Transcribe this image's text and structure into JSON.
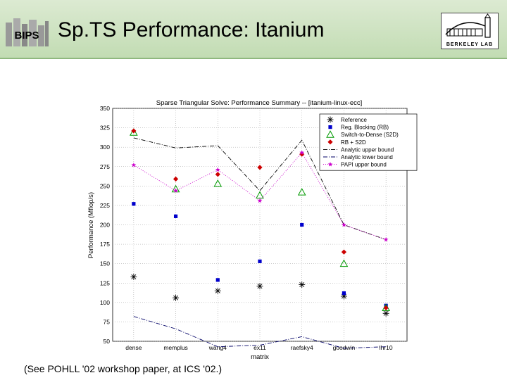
{
  "slide": {
    "title": "Sp.TS Performance: Itanium",
    "left_logo": "BIPS",
    "right_logo": "BERKELEY LAB",
    "footnote": "(See POHLL '02 workshop paper, at ICS '02.)"
  },
  "chart_data": {
    "type": "line",
    "title": "Sparse Triangular Solve: Performance Summary -- [itanium-linux-ecc]",
    "xlabel": "matrix",
    "ylabel": "Performance (Mflop/s)",
    "ylim": [
      50,
      350
    ],
    "yticks": [
      50,
      75,
      100,
      125,
      150,
      175,
      200,
      225,
      250,
      275,
      300,
      325,
      350
    ],
    "categories": [
      "dense",
      "memplus",
      "wang4",
      "ex11",
      "raefsky4",
      "goodwin",
      "lhr10"
    ],
    "grid": true,
    "legend_position": "top-right",
    "series": [
      {
        "name": "Reference",
        "marker": "asterisk",
        "color": "#000000",
        "line": "none",
        "values": [
          133,
          106,
          115,
          121,
          123,
          108,
          86
        ]
      },
      {
        "name": "Reg. Blocking (RB)",
        "marker": "square",
        "color": "#0000cc",
        "line": "none",
        "values": [
          227,
          211,
          129,
          153,
          200,
          112,
          96
        ]
      },
      {
        "name": "Switch-to-Dense (S2D)",
        "marker": "triangle",
        "color": "#009900",
        "line": "none",
        "values": [
          319,
          246,
          253,
          238,
          242,
          150,
          93
        ]
      },
      {
        "name": "RB + S2D",
        "marker": "diamond",
        "color": "#cc0000",
        "line": "none",
        "values": [
          321,
          259,
          265,
          274,
          291,
          165,
          93
        ]
      },
      {
        "name": "Analytic upper bound",
        "marker": "none",
        "color": "#000000",
        "line": "dashdot",
        "values": [
          312,
          299,
          302,
          244,
          309,
          200,
          181
        ]
      },
      {
        "name": "Analytic lower bound",
        "marker": "none",
        "color": "#000066",
        "line": "dashdot",
        "values": [
          82,
          66,
          43,
          45,
          56,
          41,
          43
        ]
      },
      {
        "name": "PAPI upper bound",
        "marker": "star",
        "color": "#cc00cc",
        "line": "dotted",
        "values": [
          277,
          244,
          271,
          231,
          293,
          200,
          181
        ]
      }
    ]
  }
}
